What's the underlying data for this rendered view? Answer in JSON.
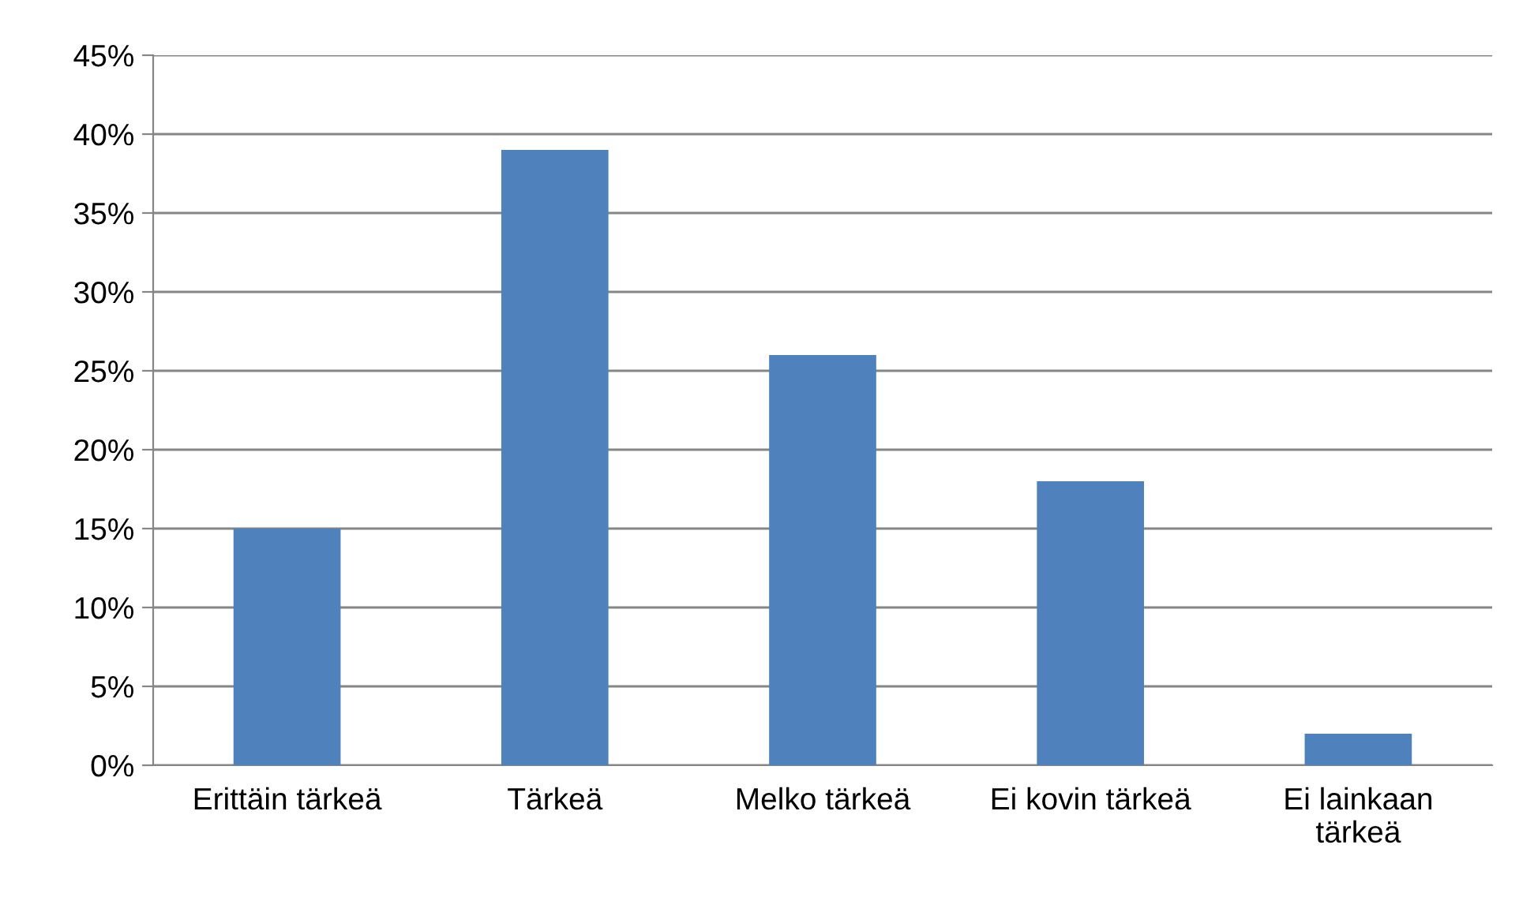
{
  "chart_data": {
    "type": "bar",
    "categories": [
      "Erittäin tärkeä",
      "Tärkeä",
      "Melko tärkeä",
      "Ei kovin tärkeä",
      "Ei lainkaan\ntärkeä"
    ],
    "values": [
      15,
      39,
      26,
      18,
      2
    ],
    "color": "#4f81bd",
    "ylim": [
      0,
      45
    ],
    "yticks": [
      {
        "value": 0,
        "label": "0%"
      },
      {
        "value": 5,
        "label": "5%"
      },
      {
        "value": 10,
        "label": "10%"
      },
      {
        "value": 15,
        "label": "15%"
      },
      {
        "value": 20,
        "label": "20%"
      },
      {
        "value": 25,
        "label": "25%"
      },
      {
        "value": 30,
        "label": "30%"
      },
      {
        "value": 35,
        "label": "35%"
      },
      {
        "value": 40,
        "label": "40%"
      },
      {
        "value": 45,
        "label": "45%"
      }
    ],
    "grid": "y"
  }
}
